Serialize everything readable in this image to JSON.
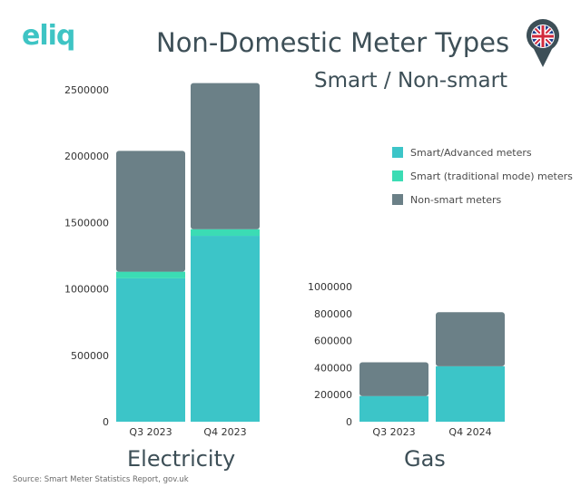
{
  "brand": {
    "logo_text": "eliq"
  },
  "header": {
    "title": "Non-Domestic Meter Types",
    "subtitle": "Smart / Non-smart",
    "flag_icon": "uk-flag-pin-icon"
  },
  "colors": {
    "smart_advanced": "#3cc5c8",
    "smart_traditional": "#3bdcb4",
    "non_smart": "#6b8087",
    "title_text": "#3d4f57"
  },
  "legend": [
    {
      "label": "Smart/Advanced meters",
      "color": "#3cc5c8"
    },
    {
      "label": "Smart (traditional mode) meters",
      "color": "#3bdcb4"
    },
    {
      "label": "Non-smart meters",
      "color": "#6b8087"
    }
  ],
  "source": "Source: Smart Meter Statistics Report, gov.uk",
  "chart_data": [
    {
      "type": "bar",
      "stacked": true,
      "label": "Electricity",
      "categories": [
        "Q3 2023",
        "Q4 2023"
      ],
      "series": [
        {
          "name": "Smart/Advanced meters",
          "values": [
            1080000,
            1400000
          ]
        },
        {
          "name": "Smart (traditional mode) meters",
          "values": [
            50000,
            50000
          ]
        },
        {
          "name": "Non-smart meters",
          "values": [
            910000,
            1100000
          ]
        }
      ],
      "ylim": [
        0,
        2500000
      ],
      "yticks": [
        0,
        500000,
        1000000,
        1500000,
        2000000,
        2500000
      ]
    },
    {
      "type": "bar",
      "stacked": true,
      "label": "Gas",
      "categories": [
        "Q3 2023",
        "Q4 2024"
      ],
      "series": [
        {
          "name": "Smart/Advanced meters",
          "values": [
            190000,
            410000
          ]
        },
        {
          "name": "Smart (traditional mode) meters",
          "values": [
            0,
            0
          ]
        },
        {
          "name": "Non-smart meters",
          "values": [
            250000,
            400000
          ]
        }
      ],
      "ylim": [
        0,
        1000000
      ],
      "yticks": [
        0,
        200000,
        400000,
        600000,
        800000,
        1000000
      ]
    }
  ]
}
